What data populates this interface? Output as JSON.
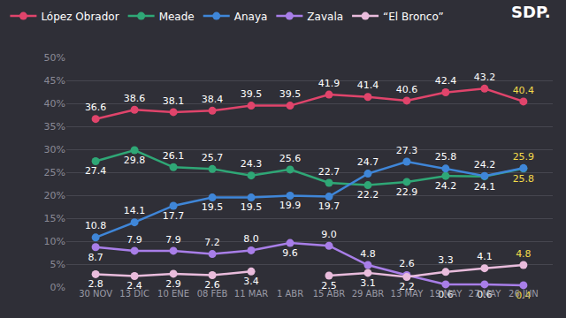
{
  "chart_data": {
    "type": "line",
    "logo": "SDP.",
    "categories": [
      "30 NOV",
      "13 DIC",
      "10 ENE",
      "08 FEB",
      "11 MAR",
      "1 ABR",
      "15 ABR",
      "29 ABR",
      "13 MAY",
      "19 MAY",
      "27 MAY",
      "26 JUN"
    ],
    "ylim": [
      0,
      50
    ],
    "yticks": [
      {
        "value": 0,
        "label": "0%"
      },
      {
        "value": 5,
        "label": "5%"
      },
      {
        "value": 10,
        "label": "10%"
      },
      {
        "value": 15,
        "label": "15%"
      },
      {
        "value": 20,
        "label": "20%"
      },
      {
        "value": 25,
        "label": "25%"
      },
      {
        "value": 30,
        "label": "30%"
      },
      {
        "value": 35,
        "label": "35%"
      },
      {
        "value": 40,
        "label": "40%"
      },
      {
        "value": 45,
        "label": "45%"
      },
      {
        "value": 50,
        "label": "50%"
      }
    ],
    "grid": true,
    "legend": "top",
    "data_labels": true,
    "marker": "circle",
    "series": [
      {
        "name": "López Obrador",
        "color": "#e0446b",
        "values": [
          36.6,
          38.6,
          38.1,
          38.4,
          39.5,
          39.5,
          41.9,
          41.4,
          40.6,
          42.4,
          43.2,
          40.4
        ],
        "value_labels": [
          "36.6",
          "38.6",
          "38.1",
          "38.4",
          "39.5",
          "39.5",
          "41.9",
          "41.4",
          "40.6",
          "42.4",
          "43.2",
          "40.4"
        ]
      },
      {
        "name": "Meade",
        "color": "#2fa776",
        "values": [
          27.4,
          29.8,
          26.1,
          25.7,
          24.3,
          25.6,
          22.7,
          22.2,
          22.9,
          24.2,
          24.1,
          25.8
        ],
        "value_labels": [
          "27.4",
          "29.8",
          "26.1",
          "25.7",
          "24.3",
          "25.6",
          "22.7",
          "22.2",
          "22.9",
          "24.2",
          "24.1",
          "25.8"
        ]
      },
      {
        "name": "Anaya",
        "color": "#3f86d8",
        "values": [
          10.8,
          14.1,
          17.7,
          19.5,
          19.5,
          19.9,
          19.7,
          24.7,
          27.3,
          25.8,
          24.2,
          25.9
        ],
        "value_labels": [
          "10.8",
          "14.1",
          "17.7",
          "19.5",
          "19.5",
          "19.9",
          "19.7",
          "24.7",
          "27.3",
          "25.8",
          "24.2",
          "25.9"
        ]
      },
      {
        "name": "Zavala",
        "color": "#a87ee8",
        "values": [
          8.7,
          7.9,
          7.9,
          7.2,
          8.0,
          9.6,
          9.0,
          4.8,
          2.6,
          0.6,
          0.6,
          0.4
        ],
        "value_labels": [
          "8.7",
          "7.9",
          "7.9",
          "7.2",
          "8.0",
          "9.6",
          "9.0",
          "4.8",
          "2.6",
          "0.6",
          "0.6",
          "0.4"
        ]
      },
      {
        "name": "“El Bronco”",
        "color": "#e9bcdc",
        "values": [
          2.8,
          2.4,
          2.9,
          2.6,
          3.4,
          null,
          2.5,
          3.1,
          2.2,
          3.3,
          4.1,
          4.8
        ],
        "value_labels": [
          "2.8",
          "2.4",
          "2.9",
          "2.6",
          "3.4",
          null,
          "2.5",
          "3.1",
          "2.2",
          "3.3",
          "4.1",
          "4.8"
        ]
      }
    ]
  }
}
